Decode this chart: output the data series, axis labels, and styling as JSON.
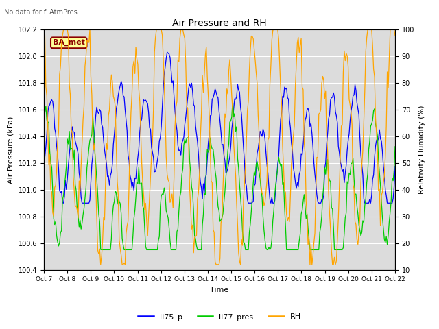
{
  "title": "Air Pressure and RH",
  "top_note": "No data for f_AtmPres",
  "xlabel": "Time",
  "ylabel_left": "Air Pressure (kPa)",
  "ylabel_right": "Relativity Humidity (%)",
  "ylim_left": [
    100.4,
    102.2
  ],
  "ylim_right": [
    10,
    100
  ],
  "yticks_left": [
    100.4,
    100.6,
    100.8,
    101.0,
    101.2,
    101.4,
    101.6,
    101.8,
    102.0,
    102.2
  ],
  "yticks_right": [
    10,
    20,
    30,
    40,
    50,
    60,
    70,
    80,
    90,
    100
  ],
  "xtick_labels": [
    "Oct 7",
    "Oct 8",
    "Oct 9",
    "Oct 10",
    "Oct 11",
    "Oct 12",
    "Oct 13",
    "Oct 14",
    "Oct 15",
    "Oct 16",
    "Oct 17",
    "Oct 18",
    "Oct 19",
    "Oct 20",
    "Oct 21",
    "Oct 22"
  ],
  "color_li75_p": "#0000FF",
  "color_li77_pres": "#00CC00",
  "color_RH": "#FFA500",
  "bg_color": "#DCDCDC",
  "legend_labels": [
    "li75_p",
    "li77_pres",
    "RH"
  ],
  "badge_text": "BA_met",
  "badge_facecolor": "#FFFF99",
  "badge_edgecolor": "#8B0000",
  "badge_textcolor": "#8B0000",
  "figsize": [
    6.4,
    4.8
  ],
  "dpi": 100
}
